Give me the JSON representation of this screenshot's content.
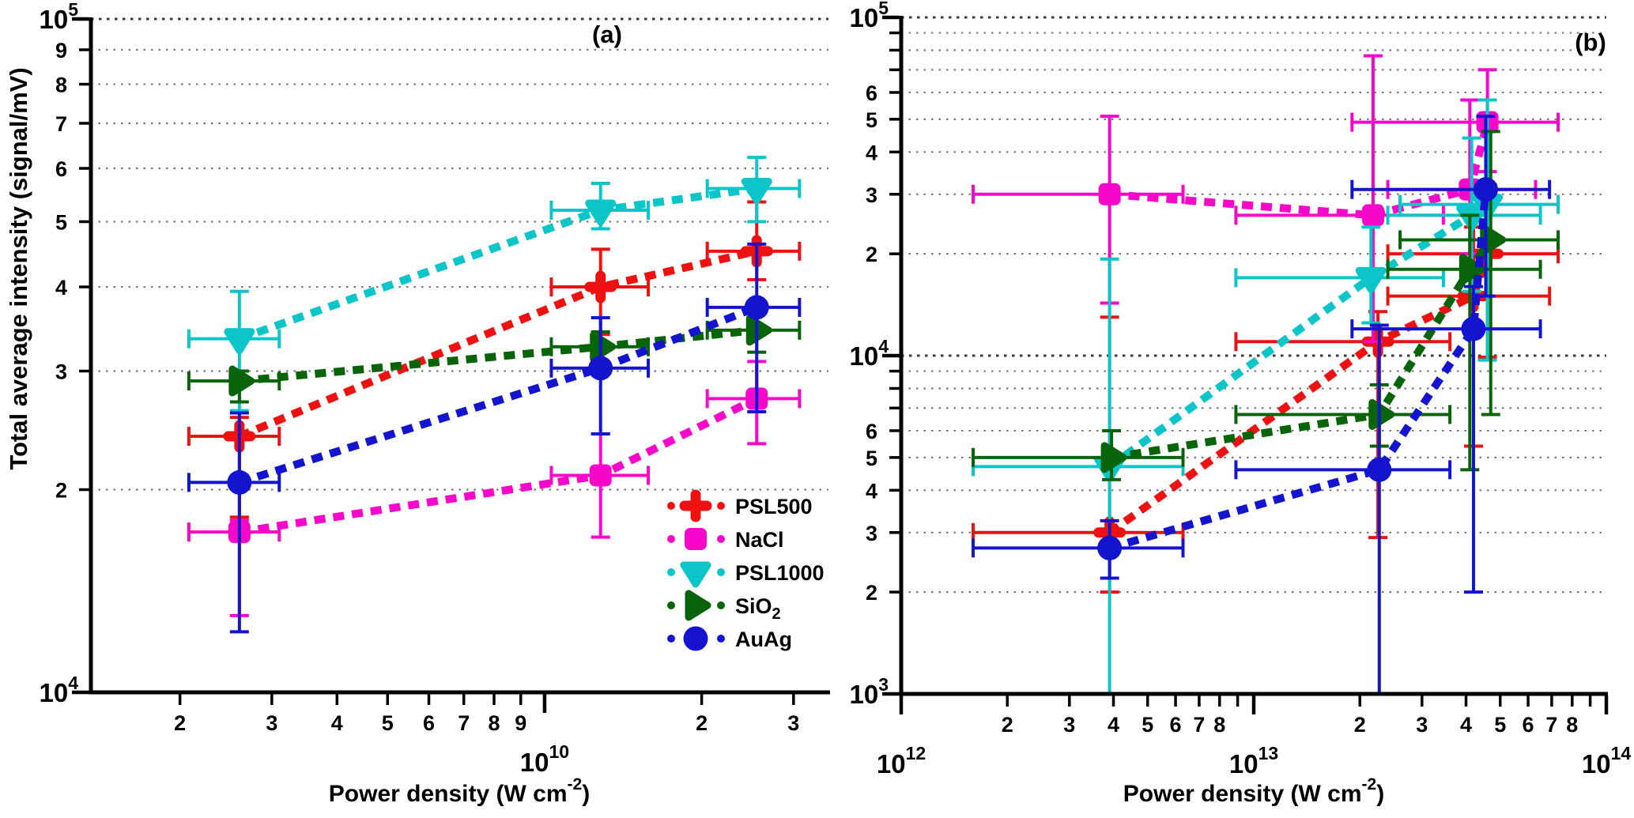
{
  "figure": {
    "background": "#ffffff",
    "y_axis_title": "Total average intensity (signal/mV)",
    "x_axis_title": {
      "pre": "Power density (W cm",
      "sup": "-2",
      "post": ")"
    }
  },
  "colors": {
    "psl500": "#ee1111",
    "nacl": "#f707c9",
    "psl1000": "#0cc5c9",
    "sio2": "#086408",
    "auag": "#1414ce",
    "axis": "#000000",
    "grid_minor": "#7a7a7a",
    "grid_major": "#3a3a3a"
  },
  "legend": {
    "items": [
      {
        "label": "PSL500",
        "label_main": "PSL500",
        "label_sub": "",
        "marker": "cross",
        "color": "#ee1111"
      },
      {
        "label": "NaCl",
        "label_main": "NaCl",
        "label_sub": "",
        "marker": "square",
        "color": "#f707c9"
      },
      {
        "label": "PSL1000",
        "label_main": "PSL1000",
        "label_sub": "",
        "marker": "triangle-down",
        "color": "#0cc5c9"
      },
      {
        "label": "SiO2",
        "label_main": "SiO",
        "label_sub": "2",
        "marker": "triangle-right",
        "color": "#086408"
      },
      {
        "label": "AuAg",
        "label_main": "AuAg",
        "label_sub": "",
        "marker": "circle",
        "color": "#1414ce"
      }
    ]
  },
  "chart_data": [
    {
      "type": "scatter",
      "panel_id": "a",
      "panel_label": "(a)",
      "scale": "log-log",
      "grid": true,
      "legend_position": "inside-lower-right",
      "xlabel": "Power density (W cm^-2)",
      "ylabel": "Total average intensity (signal/mV)",
      "xlim": [
        1350000000.0,
        35000000000.0
      ],
      "ylim": [
        10000.0,
        100000.0
      ],
      "x_ticks": {
        "major": [
          {
            "value": 10000000000.0,
            "base": "10",
            "sup": "10"
          }
        ],
        "minor": [
          {
            "value": 2000000000.0,
            "label": "2"
          },
          {
            "value": 3000000000.0,
            "label": "3"
          },
          {
            "value": 4000000000.0,
            "label": "4"
          },
          {
            "value": 5000000000.0,
            "label": "5"
          },
          {
            "value": 6000000000.0,
            "label": "6"
          },
          {
            "value": 7000000000.0,
            "label": "7"
          },
          {
            "value": 8000000000.0,
            "label": "8"
          },
          {
            "value": 9000000000.0,
            "label": "9"
          },
          {
            "value": 20000000000.0,
            "label": "2"
          },
          {
            "value": 30000000000.0,
            "label": "3"
          }
        ]
      },
      "y_ticks": {
        "major": [
          {
            "value": 100000.0,
            "base": "10",
            "sup": "5"
          },
          {
            "value": 10000.0,
            "base": "10",
            "sup": "4"
          }
        ],
        "minor": [
          {
            "value": 90000.0,
            "label": "9"
          },
          {
            "value": 80000.0,
            "label": "8"
          },
          {
            "value": 70000.0,
            "label": "7"
          },
          {
            "value": 60000.0,
            "label": "6"
          },
          {
            "value": 50000.0,
            "label": "5"
          },
          {
            "value": 40000.0,
            "label": "4"
          },
          {
            "value": 30000.0,
            "label": "3"
          },
          {
            "value": 20000.0,
            "label": "2"
          }
        ]
      },
      "series": [
        {
          "name": "PSL500",
          "marker": "cross",
          "color": "#ee1111",
          "x": [
            2600000000.0,
            12800000000.0,
            25500000000.0
          ],
          "y": [
            24000,
            40000,
            45200
          ],
          "x_err_lo": [
            2080000000.0,
            10300000000.0,
            20500000000.0
          ],
          "x_err_hi": [
            3100000000.0,
            15800000000.0,
            30800000000.0
          ],
          "y_err_lo": [
            18200,
            34000,
            41000
          ],
          "y_err_hi": [
            25600,
            45500,
            53500
          ]
        },
        {
          "name": "NaCl",
          "marker": "square",
          "color": "#f707c9",
          "x": [
            2600000000.0,
            12800000000.0,
            25500000000.0
          ],
          "y": [
            17300,
            21000,
            27300
          ],
          "x_err_lo": [
            2080000000.0,
            10300000000.0,
            20500000000.0
          ],
          "x_err_hi": [
            3100000000.0,
            15800000000.0,
            30800000000.0
          ],
          "y_err_lo": [
            13000,
            17000,
            23400
          ],
          "y_err_hi": [
            18000,
            24200,
            31000
          ]
        },
        {
          "name": "PSL1000",
          "marker": "triangle-down",
          "color": "#0cc5c9",
          "x": [
            2600000000.0,
            12800000000.0,
            25500000000.0
          ],
          "y": [
            33500,
            52000,
            56000
          ],
          "x_err_lo": [
            2080000000.0,
            10300000000.0,
            20500000000.0
          ],
          "x_err_hi": [
            3100000000.0,
            15800000000.0,
            30800000000.0
          ],
          "y_err_lo": [
            26200,
            48800,
            50000
          ],
          "y_err_hi": [
            39400,
            57000,
            62300
          ]
        },
        {
          "name": "SiO2",
          "marker": "triangle-right",
          "color": "#086408",
          "x": [
            2600000000.0,
            12800000000.0,
            25500000000.0
          ],
          "y": [
            29000,
            32600,
            34500
          ],
          "x_err_lo": [
            2080000000.0,
            10300000000.0,
            20500000000.0
          ],
          "x_err_hi": [
            3100000000.0,
            15800000000.0,
            30800000000.0
          ],
          "y_err_lo": [
            27000,
            30800,
            32000
          ],
          "y_err_hi": [
            30000,
            34300,
            37000
          ]
        },
        {
          "name": "AuAg",
          "marker": "circle",
          "color": "#1414ce",
          "x": [
            2600000000.0,
            12800000000.0,
            25500000000.0
          ],
          "y": [
            20500,
            30300,
            37300
          ],
          "x_err_lo": [
            2080000000.0,
            10300000000.0,
            20500000000.0
          ],
          "x_err_hi": [
            3100000000.0,
            15800000000.0,
            30800000000.0
          ],
          "y_err_lo": [
            12300,
            24200,
            26100
          ],
          "y_err_hi": [
            26000,
            36000,
            46300
          ]
        }
      ]
    },
    {
      "type": "scatter",
      "panel_id": "b",
      "panel_label": "(b)",
      "scale": "log-log",
      "grid": true,
      "legend_position": "none",
      "xlabel": "Power density (W cm^-2)",
      "ylabel": "",
      "xlim": [
        1000000000000.0,
        100000000000000.0
      ],
      "ylim": [
        1000.0,
        100000.0
      ],
      "x_ticks": {
        "major": [
          {
            "value": 1000000000000.0,
            "base": "10",
            "sup": "12"
          },
          {
            "value": 10000000000000.0,
            "base": "10",
            "sup": "13"
          },
          {
            "value": 100000000000000.0,
            "base": "10",
            "sup": "14"
          }
        ],
        "minor": [
          {
            "value": 2000000000000.0,
            "label": "2"
          },
          {
            "value": 3000000000000.0,
            "label": "3"
          },
          {
            "value": 4000000000000.0,
            "label": "4"
          },
          {
            "value": 5000000000000.0,
            "label": "5"
          },
          {
            "value": 6000000000000.0,
            "label": "6"
          },
          {
            "value": 7000000000000.0,
            "label": "7"
          },
          {
            "value": 8000000000000.0,
            "label": "8"
          },
          {
            "value": 9000000000000.0,
            "label": ""
          },
          {
            "value": 20000000000000.0,
            "label": "2"
          },
          {
            "value": 30000000000000.0,
            "label": "3"
          },
          {
            "value": 40000000000000.0,
            "label": "4"
          },
          {
            "value": 50000000000000.0,
            "label": "5"
          },
          {
            "value": 60000000000000.0,
            "label": "6"
          },
          {
            "value": 70000000000000.0,
            "label": "7"
          },
          {
            "value": 80000000000000.0,
            "label": "8"
          },
          {
            "value": 90000000000000.0,
            "label": ""
          }
        ]
      },
      "y_ticks": {
        "major": [
          {
            "value": 100000.0,
            "base": "10",
            "sup": "5"
          },
          {
            "value": 10000.0,
            "base": "10",
            "sup": "4"
          },
          {
            "value": 1000.0,
            "base": "10",
            "sup": "3"
          }
        ],
        "minor": [
          {
            "value": 90000.0,
            "label": ""
          },
          {
            "value": 80000.0,
            "label": ""
          },
          {
            "value": 70000.0,
            "label": ""
          },
          {
            "value": 60000.0,
            "label": "6"
          },
          {
            "value": 50000.0,
            "label": "5"
          },
          {
            "value": 40000.0,
            "label": "4"
          },
          {
            "value": 30000.0,
            "label": "3"
          },
          {
            "value": 20000.0,
            "label": "2"
          },
          {
            "value": 9000.0,
            "label": ""
          },
          {
            "value": 8000.0,
            "label": ""
          },
          {
            "value": 7000.0,
            "label": ""
          },
          {
            "value": 6000.0,
            "label": "6"
          },
          {
            "value": 5000.0,
            "label": "5"
          },
          {
            "value": 4000.0,
            "label": "4"
          },
          {
            "value": 3000.0,
            "label": "3"
          },
          {
            "value": 2000.0,
            "label": "2"
          }
        ]
      },
      "series": [
        {
          "name": "PSL500",
          "marker": "cross",
          "color": "#ee1111",
          "x": [
            3900000000000.0,
            22500000000000.0,
            42000000000000.0,
            46000000000000.0
          ],
          "y": [
            3000,
            11000,
            15000,
            20000
          ],
          "x_err_lo": [
            1600000000000.0,
            8900000000000.0,
            24000000000000.0,
            24000000000000.0
          ],
          "x_err_hi": [
            6300000000000.0,
            36000000000000.0,
            69000000000000.0,
            73000000000000.0
          ],
          "y_err_lo": [
            2000,
            2900,
            5400,
            9900
          ],
          "y_err_hi": [
            13000,
            13500,
            24000,
            32000
          ]
        },
        {
          "name": "NaCl",
          "marker": "square",
          "color": "#f707c9",
          "x": [
            3900000000000.0,
            21800000000000.0,
            41000000000000.0,
            46000000000000.0
          ],
          "y": [
            30000,
            26000,
            31000,
            49000
          ],
          "x_err_lo": [
            1600000000000.0,
            8900000000000.0,
            24000000000000.0,
            19000000000000.0
          ],
          "x_err_hi": [
            6300000000000.0,
            34500000000000.0,
            63000000000000.0,
            73000000000000.0
          ],
          "y_err_lo": [
            14300,
            11000,
            20000,
            35000
          ],
          "y_err_hi": [
            51000,
            77000,
            57000,
            70000
          ]
        },
        {
          "name": "PSL1000",
          "marker": "triangle-down",
          "color": "#0cc5c9",
          "x": [
            3900000000000.0,
            21500000000000.0,
            41500000000000.0,
            46000000000000.0
          ],
          "y": [
            4700,
            17000,
            26000,
            28000
          ],
          "x_err_lo": [
            1600000000000.0,
            8900000000000.0,
            24000000000000.0,
            26000000000000.0
          ],
          "x_err_hi": [
            6300000000000.0,
            34500000000000.0,
            65000000000000.0,
            73000000000000.0
          ],
          "y_err_lo": [
            900,
            12500,
            15500,
            9700
          ],
          "y_err_hi": [
            19300,
            24000,
            44000,
            57000
          ]
        },
        {
          "name": "SiO2",
          "marker": "triangle-right",
          "color": "#086408",
          "x": [
            3950000000000.0,
            22700000000000.0,
            41000000000000.0,
            47000000000000.0
          ],
          "y": [
            5000,
            6700,
            18000,
            22000
          ],
          "x_err_lo": [
            1600000000000.0,
            8900000000000.0,
            24000000000000.0,
            26000000000000.0
          ],
          "x_err_hi": [
            6300000000000.0,
            36000000000000.0,
            65000000000000.0,
            73000000000000.0
          ],
          "y_err_lo": [
            4300,
            5400,
            4600,
            6700
          ],
          "y_err_hi": [
            6000,
            8200,
            26000,
            46000
          ]
        },
        {
          "name": "AuAg",
          "marker": "circle",
          "color": "#1414ce",
          "x": [
            3900000000000.0,
            22700000000000.0,
            42000000000000.0,
            45500000000000.0
          ],
          "y": [
            2700,
            4600,
            12000,
            31000
          ],
          "x_err_lo": [
            1600000000000.0,
            8900000000000.0,
            19000000000000.0,
            19000000000000.0
          ],
          "x_err_hi": [
            6300000000000.0,
            36000000000000.0,
            65000000000000.0,
            69000000000000.0
          ],
          "y_err_lo": [
            2200,
            900,
            2000,
            15000
          ],
          "y_err_hi": [
            3250,
            12300,
            16000,
            51000
          ]
        }
      ]
    }
  ]
}
